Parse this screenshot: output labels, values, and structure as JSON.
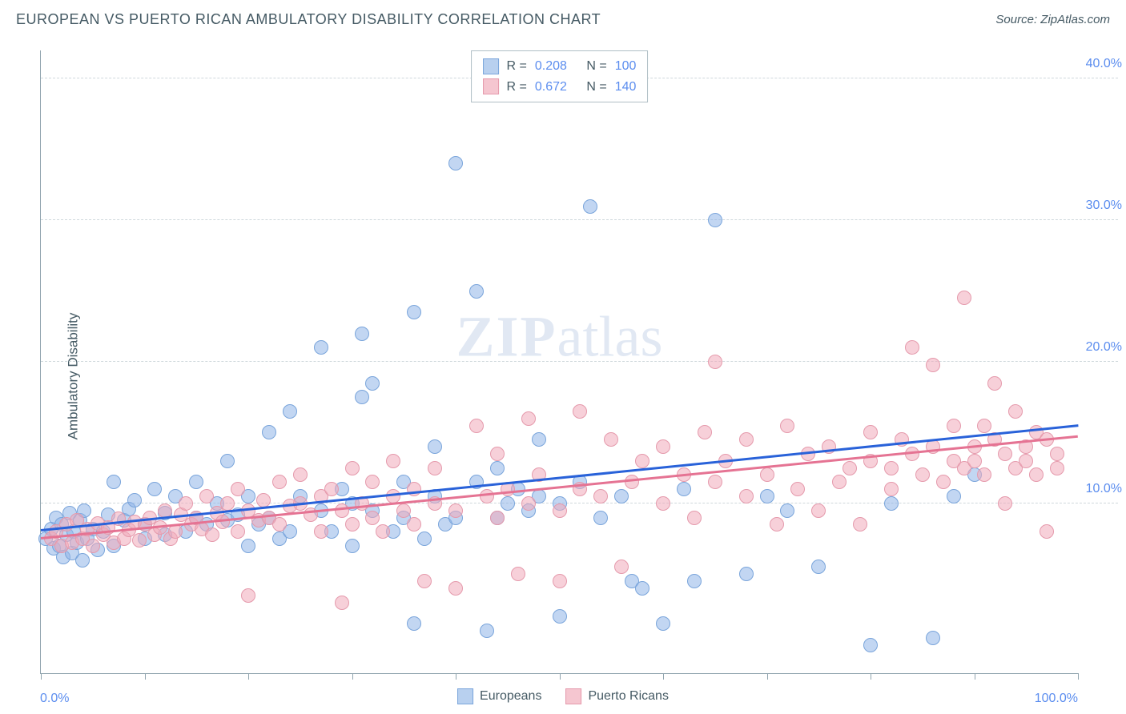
{
  "title": "EUROPEAN VS PUERTO RICAN AMBULATORY DISABILITY CORRELATION CHART",
  "source_label": "Source:",
  "source_value": "ZipAtlas.com",
  "watermark_zip": "ZIP",
  "watermark_atlas": "atlas",
  "y_axis_title": "Ambulatory Disability",
  "chart": {
    "type": "scatter",
    "xlim": [
      0,
      100
    ],
    "ylim": [
      -2,
      42
    ],
    "x_min_label": "0.0%",
    "x_max_label": "100.0%",
    "x_ticks": [
      0,
      10,
      20,
      30,
      40,
      50,
      60,
      70,
      80,
      90,
      100
    ],
    "y_gridlines": [
      {
        "value": 10,
        "label": "10.0%"
      },
      {
        "value": 20,
        "label": "20.0%"
      },
      {
        "value": 30,
        "label": "30.0%"
      },
      {
        "value": 40,
        "label": "40.0%"
      }
    ],
    "marker_radius": 9,
    "series": [
      {
        "name": "Europeans",
        "fill": "rgba(144, 180, 232, 0.55)",
        "stroke": "#7aa5db",
        "swatch_fill": "#b8d0ef",
        "swatch_stroke": "#7aa5db",
        "trend_color": "#2962d9",
        "trend": {
          "x1": 0,
          "y1": 8.2,
          "x2": 100,
          "y2": 15.6
        },
        "r_value": "0.208",
        "n_value": "100",
        "points": [
          [
            0.5,
            7.5
          ],
          [
            1,
            8.2
          ],
          [
            1.2,
            6.8
          ],
          [
            1.5,
            9.0
          ],
          [
            1.8,
            7.0
          ],
          [
            2,
            8.5
          ],
          [
            2.2,
            6.2
          ],
          [
            2.5,
            7.8
          ],
          [
            2.8,
            9.3
          ],
          [
            3,
            6.5
          ],
          [
            3.2,
            8.0
          ],
          [
            3.5,
            7.2
          ],
          [
            3.8,
            8.8
          ],
          [
            4,
            6.0
          ],
          [
            4.2,
            9.5
          ],
          [
            4.5,
            7.5
          ],
          [
            5,
            8.2
          ],
          [
            5.5,
            6.7
          ],
          [
            6,
            8.0
          ],
          [
            6.5,
            9.2
          ],
          [
            7,
            7.0
          ],
          [
            7,
            11.5
          ],
          [
            8,
            8.8
          ],
          [
            8.5,
            9.6
          ],
          [
            9,
            10.2
          ],
          [
            10,
            7.5
          ],
          [
            10,
            8.5
          ],
          [
            11,
            11.0
          ],
          [
            12,
            7.8
          ],
          [
            12,
            9.3
          ],
          [
            13,
            10.5
          ],
          [
            14,
            8.0
          ],
          [
            15,
            9.0
          ],
          [
            15,
            11.5
          ],
          [
            16,
            8.5
          ],
          [
            17,
            10.0
          ],
          [
            18,
            8.8
          ],
          [
            18,
            13.0
          ],
          [
            19,
            9.2
          ],
          [
            20,
            7.0
          ],
          [
            20,
            10.5
          ],
          [
            21,
            8.5
          ],
          [
            22,
            9.0
          ],
          [
            22,
            15.0
          ],
          [
            23,
            7.5
          ],
          [
            24,
            16.5
          ],
          [
            24,
            8.0
          ],
          [
            25,
            10.5
          ],
          [
            27,
            9.5
          ],
          [
            27,
            21.0
          ],
          [
            28,
            8.0
          ],
          [
            29,
            11.0
          ],
          [
            30,
            7.0
          ],
          [
            30,
            10.0
          ],
          [
            31,
            17.5
          ],
          [
            31,
            22.0
          ],
          [
            32,
            18.5
          ],
          [
            32,
            9.5
          ],
          [
            34,
            8.0
          ],
          [
            35,
            9.0
          ],
          [
            35,
            11.5
          ],
          [
            36,
            23.5
          ],
          [
            36,
            1.5
          ],
          [
            37,
            7.5
          ],
          [
            38,
            10.5
          ],
          [
            38,
            14.0
          ],
          [
            39,
            8.5
          ],
          [
            40,
            34.0
          ],
          [
            40,
            9.0
          ],
          [
            42,
            25.0
          ],
          [
            42,
            11.5
          ],
          [
            43,
            1.0
          ],
          [
            44,
            9.0
          ],
          [
            44,
            12.5
          ],
          [
            45,
            10.0
          ],
          [
            46,
            11.0
          ],
          [
            47,
            9.5
          ],
          [
            48,
            10.5
          ],
          [
            48,
            14.5
          ],
          [
            50,
            10.0
          ],
          [
            50,
            2.0
          ],
          [
            52,
            11.5
          ],
          [
            53,
            31.0
          ],
          [
            54,
            9.0
          ],
          [
            56,
            10.5
          ],
          [
            57,
            4.5
          ],
          [
            58,
            4.0
          ],
          [
            60,
            1.5
          ],
          [
            62,
            11.0
          ],
          [
            63,
            4.5
          ],
          [
            65,
            30.0
          ],
          [
            68,
            5.0
          ],
          [
            70,
            10.5
          ],
          [
            72,
            9.5
          ],
          [
            75,
            5.5
          ],
          [
            80,
            0.0
          ],
          [
            82,
            10.0
          ],
          [
            86,
            0.5
          ],
          [
            88,
            10.5
          ],
          [
            90,
            12.0
          ]
        ]
      },
      {
        "name": "Puerto Ricans",
        "fill": "rgba(240, 170, 185, 0.55)",
        "stroke": "#e59aac",
        "swatch_fill": "#f5c6d0",
        "swatch_stroke": "#e59aac",
        "trend_color": "#e57393",
        "trend": {
          "x1": 0,
          "y1": 7.6,
          "x2": 100,
          "y2": 14.8
        },
        "r_value": "0.672",
        "n_value": "140",
        "points": [
          [
            1,
            7.5
          ],
          [
            1.5,
            8.0
          ],
          [
            2,
            7.0
          ],
          [
            2.5,
            8.5
          ],
          [
            3,
            7.2
          ],
          [
            3.5,
            8.8
          ],
          [
            4,
            7.5
          ],
          [
            4.5,
            8.2
          ],
          [
            5,
            7.0
          ],
          [
            5.5,
            8.6
          ],
          [
            6,
            7.8
          ],
          [
            6.5,
            8.3
          ],
          [
            7,
            7.2
          ],
          [
            7.5,
            8.9
          ],
          [
            8,
            7.5
          ],
          [
            8.5,
            8.1
          ],
          [
            9,
            8.7
          ],
          [
            9.5,
            7.4
          ],
          [
            10,
            8.5
          ],
          [
            10.5,
            9.0
          ],
          [
            11,
            7.8
          ],
          [
            11.5,
            8.3
          ],
          [
            12,
            9.5
          ],
          [
            12.5,
            7.5
          ],
          [
            13,
            8.0
          ],
          [
            13.5,
            9.2
          ],
          [
            14,
            10.0
          ],
          [
            14.5,
            8.5
          ],
          [
            15,
            9.0
          ],
          [
            15.5,
            8.2
          ],
          [
            16,
            10.5
          ],
          [
            16.5,
            7.8
          ],
          [
            17,
            9.3
          ],
          [
            17.5,
            8.7
          ],
          [
            18,
            10.0
          ],
          [
            19,
            8.0
          ],
          [
            19,
            11.0
          ],
          [
            20,
            9.5
          ],
          [
            20,
            3.5
          ],
          [
            21,
            8.8
          ],
          [
            21.5,
            10.2
          ],
          [
            22,
            9.0
          ],
          [
            23,
            11.5
          ],
          [
            23,
            8.5
          ],
          [
            24,
            9.8
          ],
          [
            25,
            10.0
          ],
          [
            25,
            12.0
          ],
          [
            26,
            9.2
          ],
          [
            27,
            10.5
          ],
          [
            27,
            8.0
          ],
          [
            28,
            11.0
          ],
          [
            29,
            9.5
          ],
          [
            29,
            3.0
          ],
          [
            30,
            12.5
          ],
          [
            30,
            8.5
          ],
          [
            31,
            10.0
          ],
          [
            32,
            9.0
          ],
          [
            32,
            11.5
          ],
          [
            33,
            8.0
          ],
          [
            34,
            10.5
          ],
          [
            34,
            13.0
          ],
          [
            35,
            9.5
          ],
          [
            36,
            8.5
          ],
          [
            36,
            11.0
          ],
          [
            37,
            4.5
          ],
          [
            38,
            10.0
          ],
          [
            38,
            12.5
          ],
          [
            40,
            9.5
          ],
          [
            40,
            4.0
          ],
          [
            42,
            15.5
          ],
          [
            43,
            10.5
          ],
          [
            44,
            9.0
          ],
          [
            44,
            13.5
          ],
          [
            45,
            11.0
          ],
          [
            46,
            5.0
          ],
          [
            47,
            16.0
          ],
          [
            47,
            10.0
          ],
          [
            48,
            12.0
          ],
          [
            50,
            9.5
          ],
          [
            50,
            4.5
          ],
          [
            52,
            11.0
          ],
          [
            52,
            16.5
          ],
          [
            54,
            10.5
          ],
          [
            55,
            14.5
          ],
          [
            56,
            5.5
          ],
          [
            57,
            11.5
          ],
          [
            58,
            13.0
          ],
          [
            60,
            10.0
          ],
          [
            60,
            14.0
          ],
          [
            62,
            12.0
          ],
          [
            63,
            9.0
          ],
          [
            64,
            15.0
          ],
          [
            65,
            11.5
          ],
          [
            65,
            20.0
          ],
          [
            66,
            13.0
          ],
          [
            68,
            10.5
          ],
          [
            68,
            14.5
          ],
          [
            70,
            12.0
          ],
          [
            71,
            8.5
          ],
          [
            72,
            15.5
          ],
          [
            73,
            11.0
          ],
          [
            74,
            13.5
          ],
          [
            75,
            9.5
          ],
          [
            76,
            14.0
          ],
          [
            77,
            11.5
          ],
          [
            78,
            12.5
          ],
          [
            79,
            8.5
          ],
          [
            80,
            15.0
          ],
          [
            80,
            13.0
          ],
          [
            82,
            11.0
          ],
          [
            82,
            12.5
          ],
          [
            83,
            14.5
          ],
          [
            84,
            21.0
          ],
          [
            84,
            13.5
          ],
          [
            85,
            12.0
          ],
          [
            86,
            14.0
          ],
          [
            86,
            19.8
          ],
          [
            87,
            11.5
          ],
          [
            88,
            13.0
          ],
          [
            88,
            15.5
          ],
          [
            89,
            12.5
          ],
          [
            89,
            24.5
          ],
          [
            90,
            14.0
          ],
          [
            90,
            13.0
          ],
          [
            91,
            15.5
          ],
          [
            91,
            12.0
          ],
          [
            92,
            18.5
          ],
          [
            92,
            14.5
          ],
          [
            93,
            13.5
          ],
          [
            93,
            10.0
          ],
          [
            94,
            12.5
          ],
          [
            94,
            16.5
          ],
          [
            95,
            14.0
          ],
          [
            95,
            13.0
          ],
          [
            96,
            15.0
          ],
          [
            96,
            12.0
          ],
          [
            97,
            14.5
          ],
          [
            97,
            8.0
          ],
          [
            98,
            13.5
          ],
          [
            98,
            12.5
          ]
        ]
      }
    ],
    "legend_top_label_r": "R =",
    "legend_top_label_n": "N ="
  }
}
